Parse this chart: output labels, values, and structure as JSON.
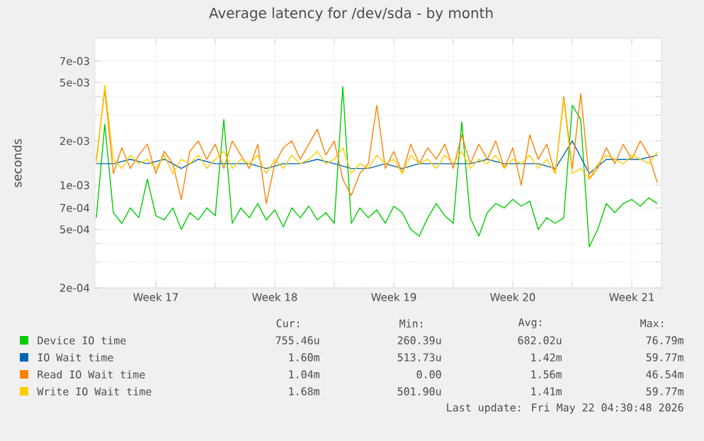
{
  "chart_data": {
    "type": "line",
    "title": "Average latency for /dev/sda - by month",
    "ylabel": "seconds",
    "log": "y",
    "grid": true,
    "legend": "bottom",
    "xlim": [
      "2026-04-19T22:00",
      "2026-05-23T06:00"
    ],
    "ylim": [
      0.0002,
      0.01
    ],
    "xticks": [
      {
        "value": "2026-04-23T12:00",
        "label": "Week 17"
      },
      {
        "value": "2026-04-27",
        "label": null
      },
      {
        "value": "2026-04-30T12:00",
        "label": "Week 18"
      },
      {
        "value": "2026-05-04",
        "label": null
      },
      {
        "value": "2026-05-07T12:00",
        "label": "Week 19"
      },
      {
        "value": "2026-05-11",
        "label": null
      },
      {
        "value": "2026-05-14T12:00",
        "label": "Week 20"
      },
      {
        "value": "2026-05-18",
        "label": null
      },
      {
        "value": "2026-05-21T12:00",
        "label": "Week 21"
      }
    ],
    "yticks": [
      {
        "value": 0.0002,
        "label": "2e-04"
      },
      {
        "value": 0.0003,
        "label": null
      },
      {
        "value": 0.0004,
        "label": null
      },
      {
        "value": 0.0005,
        "label": "5e-04"
      },
      {
        "value": 0.0007,
        "label": "7e-04"
      },
      {
        "value": 0.001,
        "label": "1e-03"
      },
      {
        "value": 0.002,
        "label": "2e-03"
      },
      {
        "value": 0.003,
        "label": null
      },
      {
        "value": 0.004,
        "label": null
      },
      {
        "value": 0.005,
        "label": "5e-03"
      },
      {
        "value": 0.007,
        "label": "7e-03"
      }
    ],
    "x": [
      "2026-04-20T00:00",
      "2026-04-20T12:00",
      "2026-04-21T00:00",
      "2026-04-21T12:00",
      "2026-04-22T00:00",
      "2026-04-22T12:00",
      "2026-04-23T00:00",
      "2026-04-23T12:00",
      "2026-04-24T00:00",
      "2026-04-24T12:00",
      "2026-04-25T00:00",
      "2026-04-25T12:00",
      "2026-04-26T00:00",
      "2026-04-26T12:00",
      "2026-04-27T00:00",
      "2026-04-27T12:00",
      "2026-04-28T00:00",
      "2026-04-28T12:00",
      "2026-04-29T00:00",
      "2026-04-29T12:00",
      "2026-04-30T00:00",
      "2026-04-30T12:00",
      "2026-05-01T00:00",
      "2026-05-01T12:00",
      "2026-05-02T00:00",
      "2026-05-02T12:00",
      "2026-05-03T00:00",
      "2026-05-03T12:00",
      "2026-05-04T00:00",
      "2026-05-04T12:00",
      "2026-05-05T00:00",
      "2026-05-05T12:00",
      "2026-05-06T00:00",
      "2026-05-06T12:00",
      "2026-05-07T00:00",
      "2026-05-07T12:00",
      "2026-05-08T00:00",
      "2026-05-08T12:00",
      "2026-05-09T00:00",
      "2026-05-09T12:00",
      "2026-05-10T00:00",
      "2026-05-10T12:00",
      "2026-05-11T00:00",
      "2026-05-11T12:00",
      "2026-05-12T00:00",
      "2026-05-12T12:00",
      "2026-05-13T00:00",
      "2026-05-13T12:00",
      "2026-05-14T00:00",
      "2026-05-14T12:00",
      "2026-05-15T00:00",
      "2026-05-15T12:00",
      "2026-05-16T00:00",
      "2026-05-16T12:00",
      "2026-05-17T00:00",
      "2026-05-17T12:00",
      "2026-05-18T00:00",
      "2026-05-18T12:00",
      "2026-05-19T00:00",
      "2026-05-19T12:00",
      "2026-05-20T00:00",
      "2026-05-20T12:00",
      "2026-05-21T00:00",
      "2026-05-21T12:00",
      "2026-05-22T00:00",
      "2026-05-22T12:00",
      "2026-05-23T00:00"
    ],
    "series": [
      {
        "name": "Device IO time",
        "color": "#00cc00",
        "values": [
          0.0006,
          0.0026,
          0.00065,
          0.00055,
          0.0007,
          0.0006,
          0.0011,
          0.00062,
          0.00058,
          0.0007,
          0.0005,
          0.00065,
          0.00058,
          0.0007,
          0.00062,
          0.0028,
          0.00055,
          0.0007,
          0.0006,
          0.00075,
          0.00058,
          0.00068,
          0.00052,
          0.0007,
          0.0006,
          0.00072,
          0.00058,
          0.00065,
          0.00055,
          0.0047,
          0.00055,
          0.0007,
          0.0006,
          0.00068,
          0.00055,
          0.00072,
          0.00065,
          0.0005,
          0.00045,
          0.0006,
          0.00075,
          0.00062,
          0.00055,
          0.0027,
          0.0006,
          0.00045,
          0.00065,
          0.00075,
          0.0007,
          0.0008,
          0.00072,
          0.00078,
          0.0005,
          0.0006,
          0.00055,
          0.0006,
          0.0035,
          0.0028,
          0.00038,
          0.0005,
          0.00075,
          0.00065,
          0.00075,
          0.0008,
          0.00072,
          0.00082,
          0.00075
        ]
      },
      {
        "name": "IO Wait time",
        "color": "#0066b3",
        "x": [
          "2026-04-20T00:00",
          "2026-04-21T00:00",
          "2026-04-22T00:00",
          "2026-04-23T00:00",
          "2026-04-24T00:00",
          "2026-04-25T00:00",
          "2026-04-26T00:00",
          "2026-04-27T00:00",
          "2026-04-28T00:00",
          "2026-04-29T00:00",
          "2026-04-30T00:00",
          "2026-05-01T00:00",
          "2026-05-02T00:00",
          "2026-05-03T00:00",
          "2026-05-04T00:00",
          "2026-05-05T00:00",
          "2026-05-06T00:00",
          "2026-05-07T00:00",
          "2026-05-08T00:00",
          "2026-05-09T00:00",
          "2026-05-10T00:00",
          "2026-05-11T00:00",
          "2026-05-12T00:00",
          "2026-05-13T00:00",
          "2026-05-14T00:00",
          "2026-05-15T00:00",
          "2026-05-16T00:00",
          "2026-05-17T00:00",
          "2026-05-18T00:00",
          "2026-05-19T00:00",
          "2026-05-20T00:00",
          "2026-05-21T00:00",
          "2026-05-22T00:00",
          "2026-05-23T00:00"
        ],
        "values": [
          0.0014,
          0.0014,
          0.0015,
          0.0014,
          0.0015,
          0.0013,
          0.0015,
          0.0014,
          0.0014,
          0.0014,
          0.0013,
          0.0014,
          0.0014,
          0.0015,
          0.0014,
          0.0013,
          0.0013,
          0.0014,
          0.0013,
          0.0014,
          0.0014,
          0.0014,
          0.0014,
          0.0015,
          0.0014,
          0.0014,
          0.0014,
          0.0013,
          0.002,
          0.0012,
          0.0015,
          0.0015,
          0.0015,
          0.0016
        ]
      },
      {
        "name": "Read IO Wait time",
        "color": "#ff8000",
        "values": [
          0.0015,
          0.0045,
          0.0012,
          0.0018,
          0.0013,
          0.0016,
          0.0019,
          0.0012,
          0.0017,
          0.0014,
          0.0008,
          0.0017,
          0.002,
          0.0015,
          0.0019,
          0.0013,
          0.002,
          0.0016,
          0.0013,
          0.0019,
          0.00075,
          0.0014,
          0.0018,
          0.002,
          0.0015,
          0.0019,
          0.0024,
          0.0016,
          0.002,
          0.0011,
          0.00085,
          0.0012,
          0.0014,
          0.0035,
          0.0013,
          0.0017,
          0.0012,
          0.0019,
          0.0014,
          0.0018,
          0.0015,
          0.0019,
          0.0013,
          0.0022,
          0.0014,
          0.0019,
          0.0015,
          0.002,
          0.0013,
          0.0018,
          0.001,
          0.0022,
          0.0015,
          0.0019,
          0.0012,
          0.004,
          0.0013,
          0.0042,
          0.0011,
          0.0013,
          0.0018,
          0.0014,
          0.0019,
          0.0015,
          0.002,
          0.0016,
          0.00104
        ]
      },
      {
        "name": "Write IO Wait time",
        "color": "#ffcc00",
        "values": [
          0.0014,
          0.0048,
          0.0015,
          0.0013,
          0.0016,
          0.0014,
          0.0015,
          0.0013,
          0.0016,
          0.0012,
          0.0015,
          0.0014,
          0.0016,
          0.0013,
          0.0015,
          0.0017,
          0.0013,
          0.0015,
          0.0014,
          0.0016,
          0.0012,
          0.0015,
          0.0013,
          0.0016,
          0.0014,
          0.0015,
          0.0017,
          0.0014,
          0.0015,
          0.0018,
          0.0012,
          0.0014,
          0.0013,
          0.0016,
          0.0014,
          0.0015,
          0.0012,
          0.0016,
          0.0014,
          0.0015,
          0.0013,
          0.0016,
          0.0014,
          0.0017,
          0.0013,
          0.0015,
          0.0014,
          0.0016,
          0.0013,
          0.0015,
          0.0014,
          0.0016,
          0.0013,
          0.0015,
          0.0012,
          0.0038,
          0.0012,
          0.0013,
          0.0011,
          0.0014,
          0.0016,
          0.0015,
          0.0014,
          0.0016,
          0.0015,
          0.0014,
          0.00168
        ]
      }
    ],
    "annotations": [
      "Cur:",
      "Min:",
      "Avg:",
      "Max:",
      "755.46u",
      "260.39u",
      "682.02u",
      "76.79m",
      "1.60m",
      "513.73u",
      "1.42m",
      "59.77m",
      "1.04m",
      "0.00",
      "1.56m",
      "46.54m",
      "1.68m",
      "501.90u",
      "1.41m",
      "59.77m",
      "Last update: Fri May 22 04:30:48 2026"
    ]
  }
}
